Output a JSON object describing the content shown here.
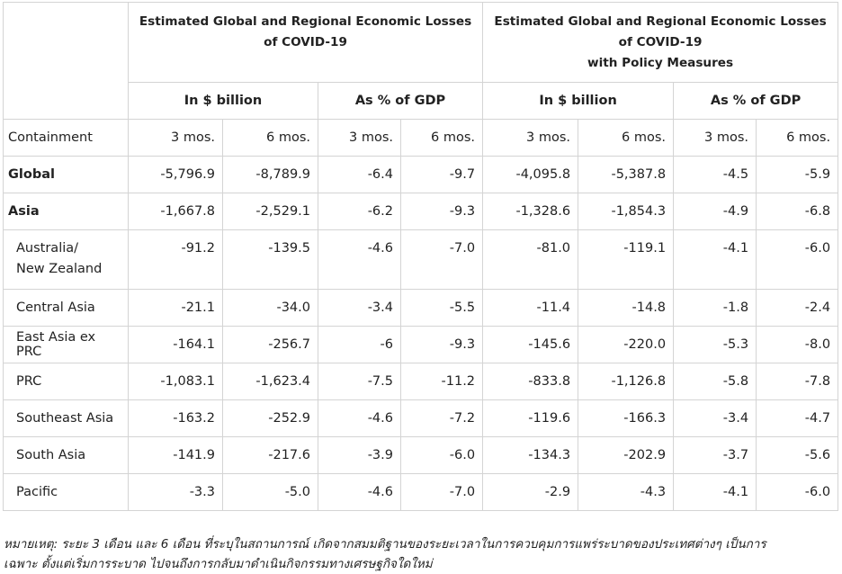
{
  "header": {
    "group1_title": "Estimated Global and Regional Economic Losses of COVID-19",
    "group2_title_line1": "Estimated Global and Regional Economic Losses of COVID-19",
    "group2_title_line2": "with Policy Measures",
    "sub_billion": "In $ billion",
    "sub_gdp": "As % of GDP",
    "row_label": "Containment",
    "p3": "3 mos.",
    "p6": "6 mos."
  },
  "rows": [
    {
      "name": "Global",
      "line2": "",
      "b3": "-5,796.9",
      "b6": "-8,789.9",
      "g3": "-6.4",
      "g6": "-9.7",
      "pb3": "-4,095.8",
      "pb6": "-5,387.8",
      "pg3": "-4.5",
      "pg6": "-5.9"
    },
    {
      "name": "Asia",
      "line2": "",
      "b3": "-1,667.8",
      "b6": "-2,529.1",
      "g3": "-6.2",
      "g6": "-9.3",
      "pb3": "-1,328.6",
      "pb6": "-1,854.3",
      "pg3": "-4.9",
      "pg6": "-6.8"
    },
    {
      "name": "Australia/",
      "line2": "New Zealand",
      "b3": "-91.2",
      "b6": "-139.5",
      "g3": "-4.6",
      "g6": "-7.0",
      "pb3": "-81.0",
      "pb6": "-119.1",
      "pg3": "-4.1",
      "pg6": "-6.0"
    },
    {
      "name": "Central Asia",
      "line2": "",
      "b3": "-21.1",
      "b6": "-34.0",
      "g3": "-3.4",
      "g6": "-5.5",
      "pb3": "-11.4",
      "pb6": "-14.8",
      "pg3": "-1.8",
      "pg6": "-2.4"
    },
    {
      "name": "East Asia ex PRC",
      "line2": "",
      "b3": "-164.1",
      "b6": "-256.7",
      "g3": "-6",
      "g6": "-9.3",
      "pb3": "-145.6",
      "pb6": "-220.0",
      "pg3": "-5.3",
      "pg6": "-8.0"
    },
    {
      "name": "PRC",
      "line2": "",
      "b3": "-1,083.1",
      "b6": "-1,623.4",
      "g3": "-7.5",
      "g6": "-11.2",
      "pb3": "-833.8",
      "pb6": "-1,126.8",
      "pg3": "-5.8",
      "pg6": "-7.8"
    },
    {
      "name": "Southeast Asia",
      "line2": "",
      "b3": "-163.2",
      "b6": "-252.9",
      "g3": "-4.6",
      "g6": "-7.2",
      "pb3": "-119.6",
      "pb6": "-166.3",
      "pg3": "-3.4",
      "pg6": "-4.7"
    },
    {
      "name": "South Asia",
      "line2": "",
      "b3": "-141.9",
      "b6": "-217.6",
      "g3": "-3.9",
      "g6": "-6.0",
      "pb3": "-134.3",
      "pb6": "-202.9",
      "pg3": "-3.7",
      "pg6": "-5.6"
    },
    {
      "name": "Pacific",
      "line2": "",
      "b3": "-3.3",
      "b6": "-5.0",
      "g3": "-4.6",
      "g6": "-7.0",
      "pb3": "-2.9",
      "pb6": "-4.3",
      "pg3": "-4.1",
      "pg6": "-6.0"
    }
  ],
  "note": {
    "line1": "หมายเหตุ: ระยะ 3 เดือน และ 6 เดือน ที่ระบุในสถานการณ์ เกิดจากสมมติฐานของระยะเวลาในการควบคุมการแพร่ระบาดของประเทศต่างๆ เป็นการ",
    "line2": "เฉพาะ ตั้งแต่เริ่มการระบาด ไปจนถึงการกลับมาดำเนินกิจกรรมทางเศรษฐกิจใดใหม่"
  }
}
